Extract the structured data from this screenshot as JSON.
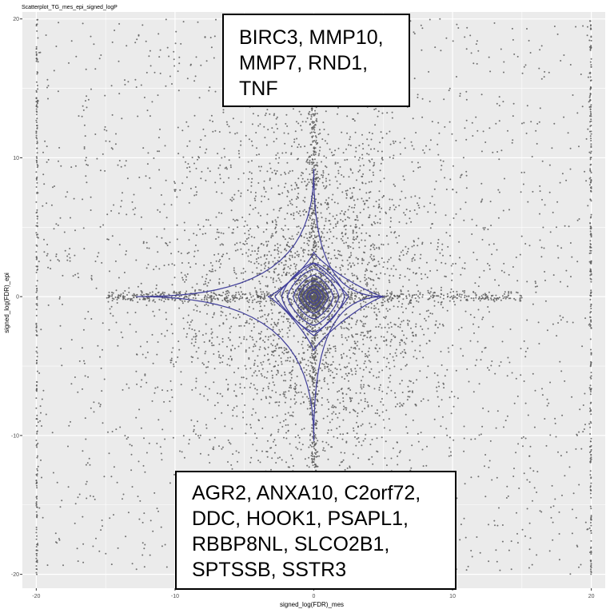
{
  "colors": {
    "panel_background": "#EBEBEB",
    "gridline": "#FFFFFF",
    "points": "#5A5A5A",
    "contours": "#3F3D99",
    "axis_text": "#4D4D4D"
  },
  "chart_data": {
    "type": "scatter",
    "title": "Scatterplot_TG_mes_epi_signed_logP",
    "xlabel": "signed_log(FDR)_mes",
    "ylabel": "signed_log(FDR)_epi",
    "xlim": [
      -21,
      21
    ],
    "ylim": [
      -21,
      20.5
    ],
    "x_ticks": [
      -20,
      -10,
      0,
      10,
      20
    ],
    "y_ticks": [
      -20,
      -10,
      0,
      10,
      20
    ],
    "x_tick_labels": [
      "-20",
      "-10",
      "0",
      "10",
      "20"
    ],
    "y_tick_labels": [
      "-20",
      "-10",
      "0",
      "10",
      "20"
    ],
    "grid": true,
    "overlay": "2D density contours",
    "point_count_approx": 9000,
    "point_distribution": "thousands of gene points; dense clusters along x = 0 and y = 0 and at the origin; vertical columns at x = -20 and x = 20; sparse uniform scatter elsewhere",
    "annotations": [
      {
        "lines": [
          "BIRC3, MMP10,",
          "MMP7, RND1,",
          "TNF"
        ]
      },
      {
        "lines": [
          "AGR2, ANXA10, C2orf72,",
          "DDC, HOOK1, PSAPL1,",
          "RBBP8NL, SLCO2B1,",
          "SPTSSB, SSTR3"
        ]
      }
    ]
  }
}
